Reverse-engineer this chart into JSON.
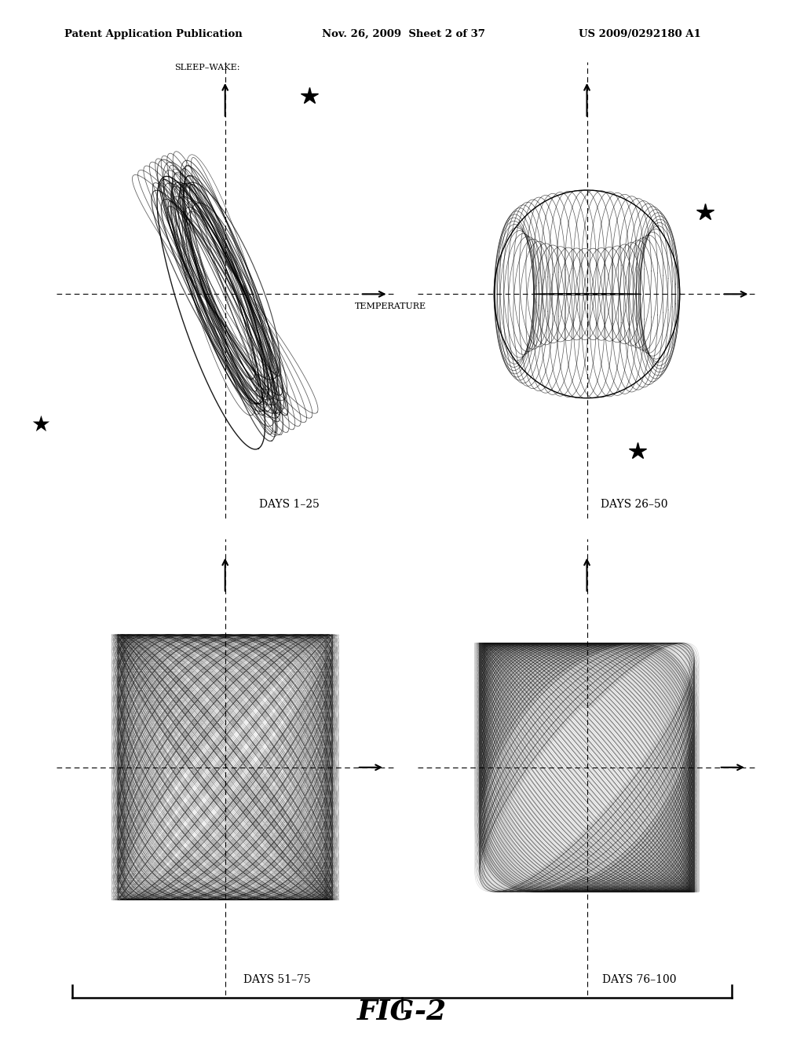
{
  "header_left": "Patent Application Publication",
  "header_mid": "Nov. 26, 2009  Sheet 2 of 37",
  "header_right": "US 2009/0292180 A1",
  "fig_label": "FIG-2",
  "background_color": "#ffffff",
  "panel_labels": [
    "DAYS 1–25",
    "DAYS 26–50",
    "DAYS 51–75",
    "DAYS 76–100"
  ],
  "axis_label_x": "TEMPERATURE",
  "axis_label_y": "SLEEP–WAKE"
}
